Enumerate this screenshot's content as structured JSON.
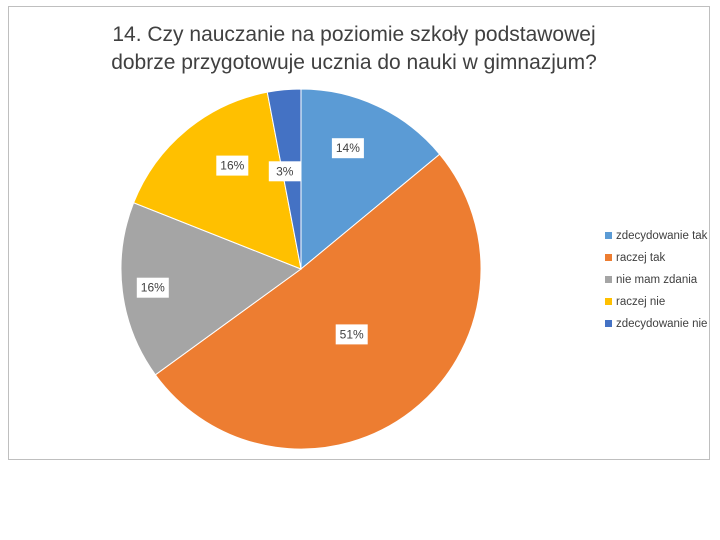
{
  "chart_data": {
    "type": "pie",
    "title_lines": [
      "14. Czy nauczanie na poziomie szkoły podstawowej",
      "dobrze przygotowuje ucznia do nauki w gimnazjum?"
    ],
    "categories": [
      "zdecydowanie tak",
      "raczej tak",
      "nie mam zdania",
      "raczej nie",
      "zdecydowanie nie"
    ],
    "values": [
      14,
      51,
      16,
      16,
      3
    ],
    "data_labels": [
      "14%",
      "51%",
      "16%",
      "16%",
      "3%"
    ],
    "colors": [
      "#5b9bd5",
      "#ed7d31",
      "#a5a5a5",
      "#ffc000",
      "#4472c4"
    ],
    "start_angle_deg": 0,
    "direction": "clockwise",
    "legend": "right"
  }
}
